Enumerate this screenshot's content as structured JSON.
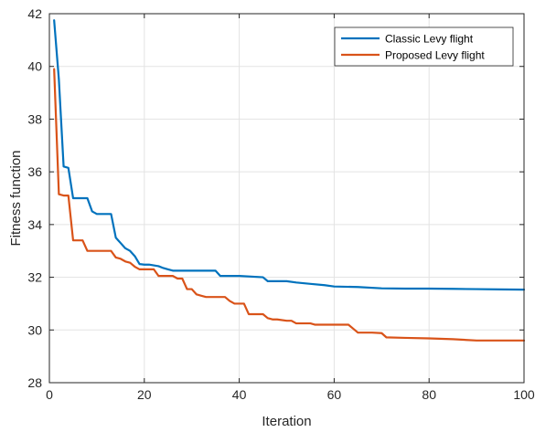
{
  "chart_data": {
    "type": "line",
    "xlabel": "Iteration",
    "ylabel": "Fitness function",
    "xlim": [
      0,
      100
    ],
    "ylim": [
      28,
      42
    ],
    "xticks": [
      0,
      20,
      40,
      60,
      80,
      100
    ],
    "yticks": [
      28,
      30,
      32,
      34,
      36,
      38,
      40,
      42
    ],
    "grid": true,
    "legend_position": "top-right",
    "series": [
      {
        "name": "Classic Levy flight",
        "color": "#0072BD",
        "x": [
          1,
          2,
          3,
          4,
          5,
          6,
          7,
          8,
          9,
          10,
          12,
          13,
          14,
          15,
          16,
          17,
          18,
          19,
          20,
          21,
          22,
          23,
          24,
          25,
          26,
          27,
          30,
          32,
          35,
          36,
          40,
          45,
          46,
          50,
          52,
          55,
          58,
          60,
          65,
          70,
          75,
          80,
          85,
          90,
          95,
          100
        ],
        "y": [
          41.75,
          39.5,
          36.2,
          36.15,
          35.0,
          35.0,
          35.0,
          35.0,
          34.5,
          34.4,
          34.4,
          34.4,
          33.5,
          33.3,
          33.1,
          33.0,
          32.8,
          32.5,
          32.48,
          32.48,
          32.45,
          32.42,
          32.35,
          32.3,
          32.25,
          32.25,
          32.25,
          32.25,
          32.25,
          32.05,
          32.05,
          32.0,
          31.85,
          31.85,
          31.8,
          31.75,
          31.7,
          31.65,
          31.63,
          31.58,
          31.57,
          31.57,
          31.56,
          31.55,
          31.54,
          31.53
        ]
      },
      {
        "name": "Proposed Levy flight",
        "color": "#D95319",
        "x": [
          1,
          2,
          3,
          4,
          5,
          6,
          7,
          8,
          9,
          10,
          12,
          13,
          14,
          15,
          16,
          17,
          18,
          19,
          20,
          21,
          22,
          23,
          24,
          25,
          26,
          27,
          28,
          29,
          30,
          31,
          32,
          33,
          35,
          37,
          38,
          39,
          40,
          41,
          42,
          43,
          44,
          45,
          46,
          47,
          48,
          50,
          51,
          52,
          55,
          56,
          60,
          62,
          63,
          64,
          65,
          66,
          68,
          70,
          71,
          75,
          80,
          85,
          90,
          95,
          100
        ],
        "y": [
          39.9,
          35.15,
          35.1,
          35.1,
          33.4,
          33.4,
          33.4,
          33.0,
          33.0,
          33.0,
          33.0,
          33.0,
          32.75,
          32.7,
          32.6,
          32.55,
          32.4,
          32.3,
          32.3,
          32.3,
          32.3,
          32.05,
          32.05,
          32.05,
          32.05,
          31.95,
          31.95,
          31.55,
          31.55,
          31.35,
          31.3,
          31.25,
          31.25,
          31.25,
          31.1,
          31.0,
          31.0,
          31.0,
          30.6,
          30.6,
          30.6,
          30.6,
          30.45,
          30.4,
          30.4,
          30.35,
          30.35,
          30.25,
          30.25,
          30.2,
          30.2,
          30.2,
          30.2,
          30.05,
          29.9,
          29.9,
          29.9,
          29.88,
          29.72,
          29.7,
          29.68,
          29.65,
          29.6,
          29.6,
          29.6
        ]
      }
    ]
  }
}
